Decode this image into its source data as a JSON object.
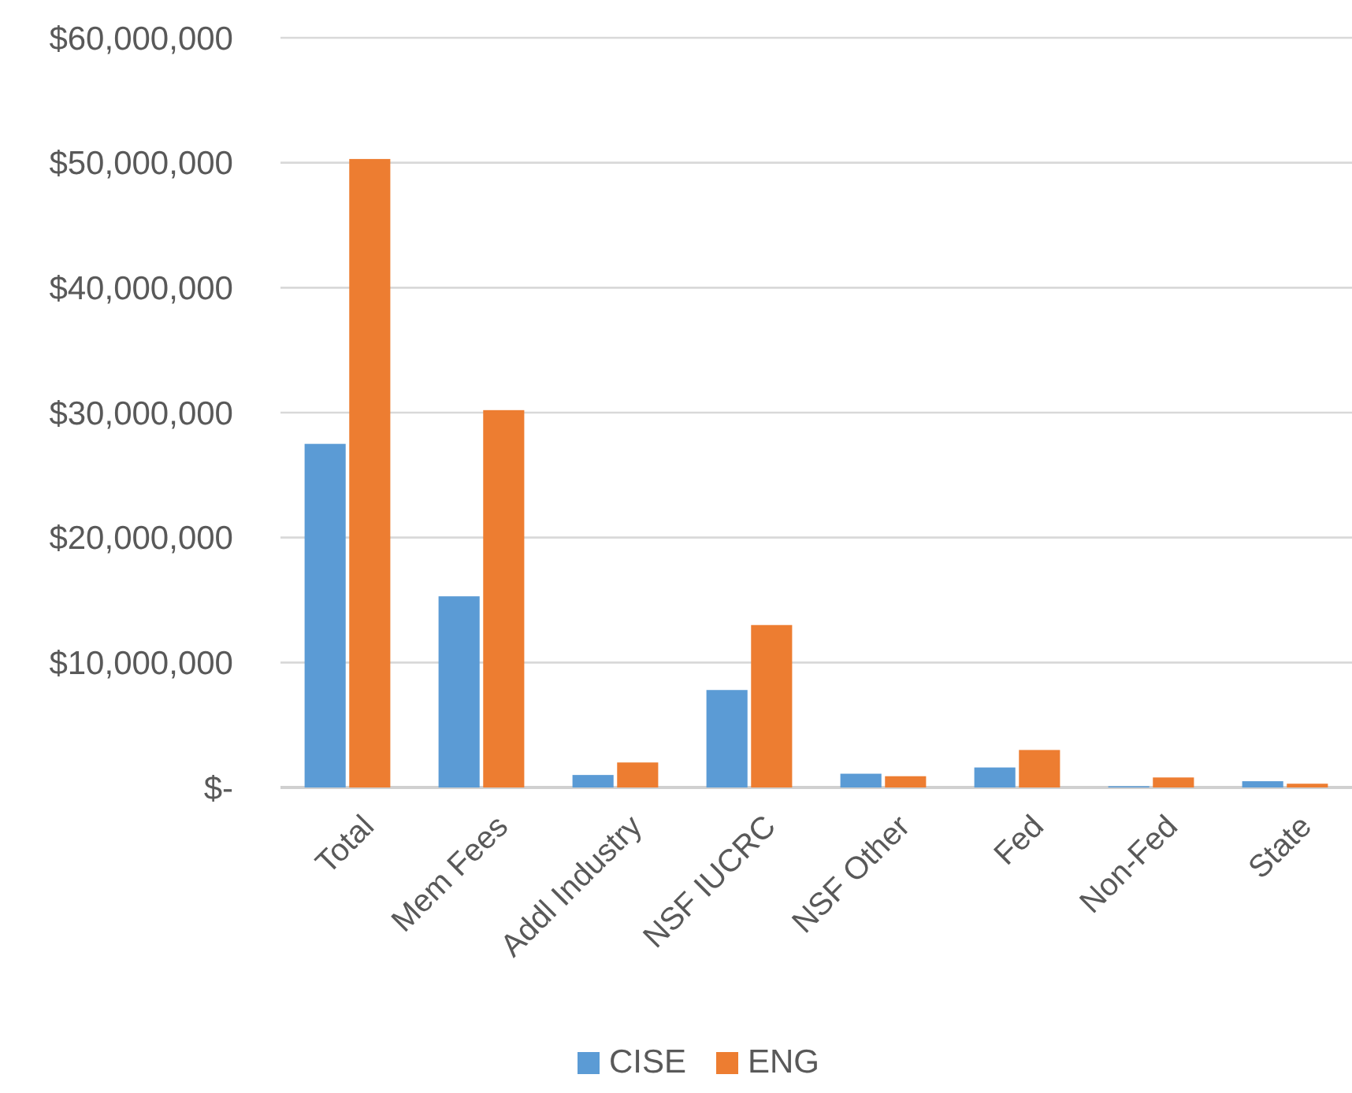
{
  "chart_data": {
    "type": "bar",
    "categories": [
      "Total",
      "Mem Fees",
      "Addl Industry",
      "NSF IUCRC",
      "NSF Other",
      "Fed",
      "Non-Fed",
      "State"
    ],
    "series": [
      {
        "name": "CISE",
        "color": "#5b9bd5",
        "values": [
          27500000,
          15300000,
          1000000,
          7800000,
          1100000,
          1600000,
          100000,
          500000
        ]
      },
      {
        "name": "ENG",
        "color": "#ed7d31",
        "values": [
          50300000,
          30200000,
          2000000,
          13000000,
          900000,
          3000000,
          800000,
          300000
        ]
      }
    ],
    "ylim": [
      0,
      60000000
    ],
    "yticks": [
      {
        "value": 0,
        "label": "$-"
      },
      {
        "value": 10000000,
        "label": "$10,000,000"
      },
      {
        "value": 20000000,
        "label": "$20,000,000"
      },
      {
        "value": 30000000,
        "label": "$30,000,000"
      },
      {
        "value": 40000000,
        "label": "$40,000,000"
      },
      {
        "value": 50000000,
        "label": "$50,000,000"
      },
      {
        "value": 60000000,
        "label": "$60,000,000"
      }
    ],
    "grid": "y",
    "legend": "bottom"
  }
}
